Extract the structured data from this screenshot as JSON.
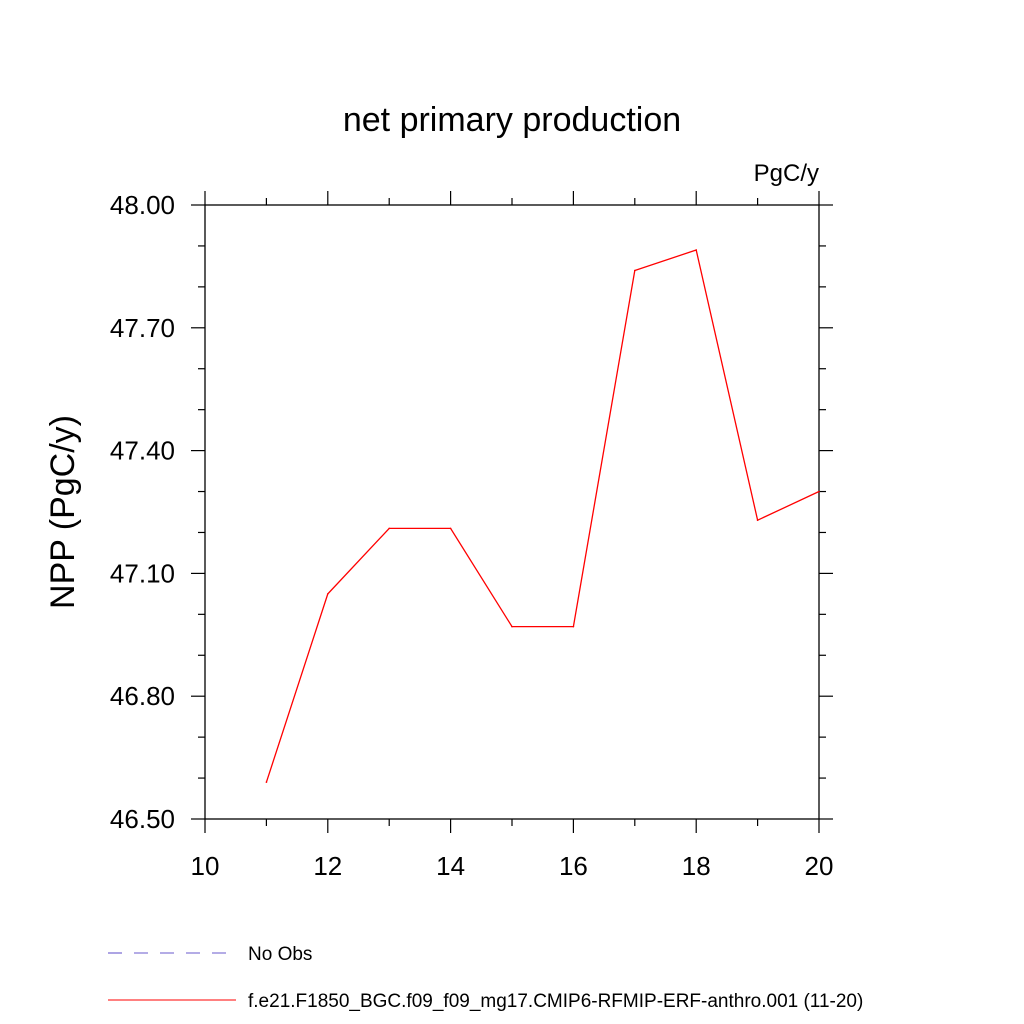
{
  "chart_data": {
    "type": "line",
    "title": "net primary production",
    "units_label": "PgC/y",
    "ylabel": "NPP  (PgC/y)",
    "xlabel": "",
    "xlim": [
      10,
      20
    ],
    "ylim": [
      46.5,
      48.0
    ],
    "x_ticks": [
      10,
      12,
      14,
      16,
      18,
      20
    ],
    "x_tick_labels": [
      "10",
      "12",
      "14",
      "16",
      "18",
      "20"
    ],
    "y_ticks": [
      46.5,
      46.8,
      47.1,
      47.4,
      47.7,
      48.0
    ],
    "y_tick_labels": [
      "46.50",
      "46.80",
      "47.10",
      "47.40",
      "47.70",
      "48.00"
    ],
    "grid": false,
    "legend_position": "bottom",
    "series": [
      {
        "name": "f.e21.F1850_BGC.f09_f09_mg17.CMIP6-RFMIP-ERF-anthro.001 (11-20)",
        "color": "#ff0000",
        "style": "solid",
        "x": [
          11,
          12,
          13,
          14,
          15,
          16,
          17,
          18,
          19,
          20
        ],
        "y": [
          46.59,
          47.05,
          47.21,
          47.21,
          46.97,
          46.97,
          47.84,
          47.89,
          47.23,
          47.3
        ]
      }
    ],
    "legend": [
      {
        "label": "No Obs",
        "color": "#6a5acd",
        "style": "dashed"
      },
      {
        "label": "f.e21.F1850_BGC.f09_f09_mg17.CMIP6-RFMIP-ERF-anthro.001 (11-20)",
        "color": "#ff0000",
        "style": "solid"
      }
    ]
  }
}
